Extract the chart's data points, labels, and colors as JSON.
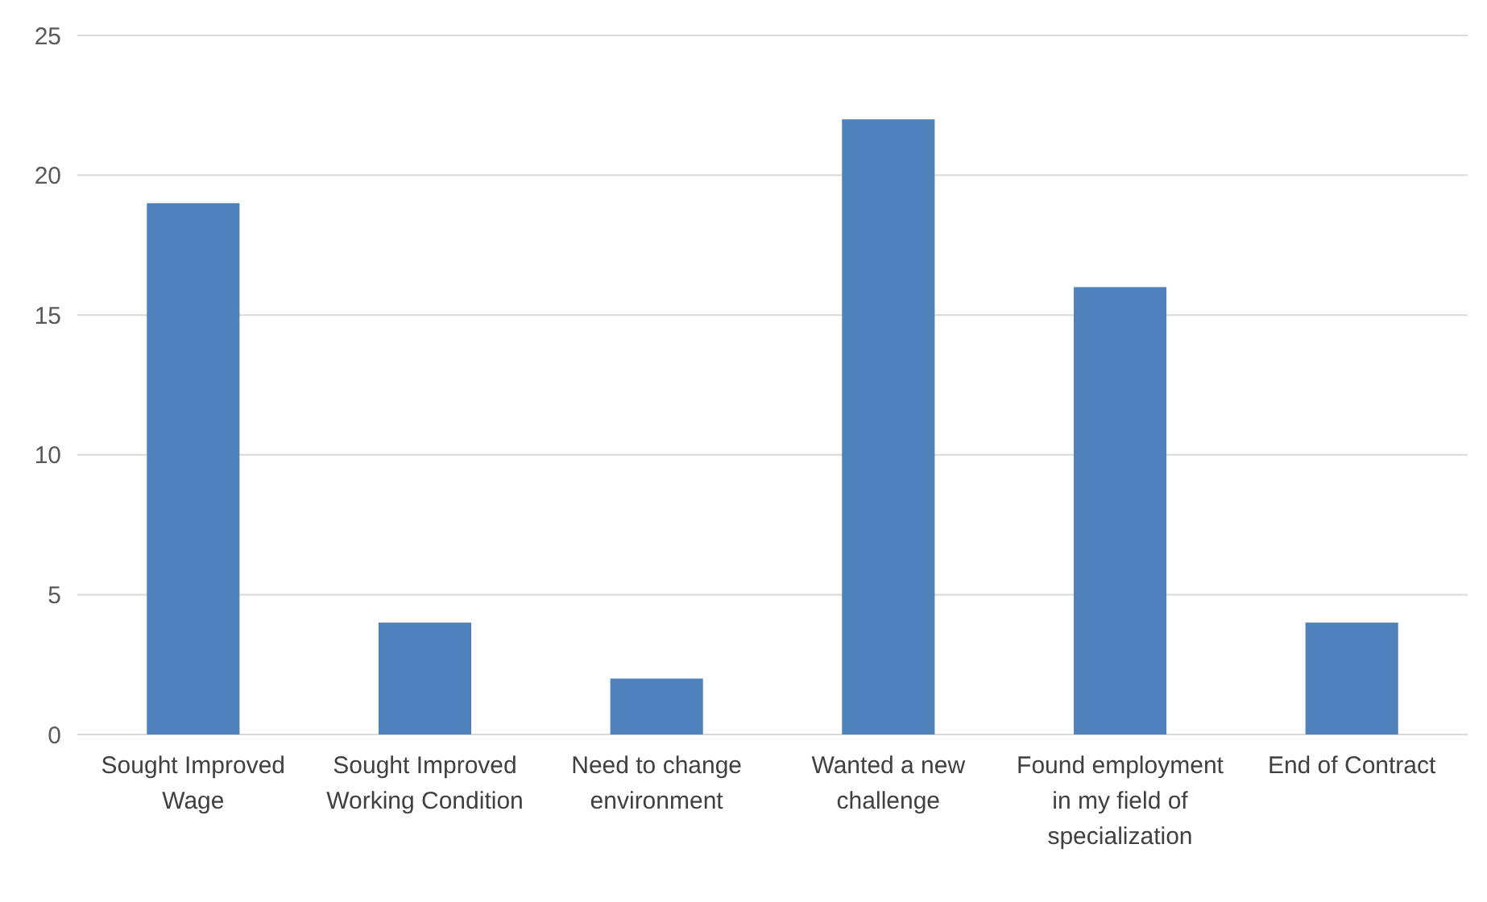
{
  "chart_data": {
    "type": "bar",
    "categories": [
      "Sought Improved Wage",
      "Sought Improved Working Condition",
      "Need to change environment",
      "Wanted a new challenge",
      "Found employment in my field of specialization",
      "End of Contract"
    ],
    "values": [
      19,
      4,
      2,
      22,
      16,
      4
    ],
    "color": "#4f81bd",
    "ylim": [
      0,
      25
    ],
    "yticks": [
      0,
      5,
      10,
      15,
      20,
      25
    ],
    "grid": "y"
  }
}
